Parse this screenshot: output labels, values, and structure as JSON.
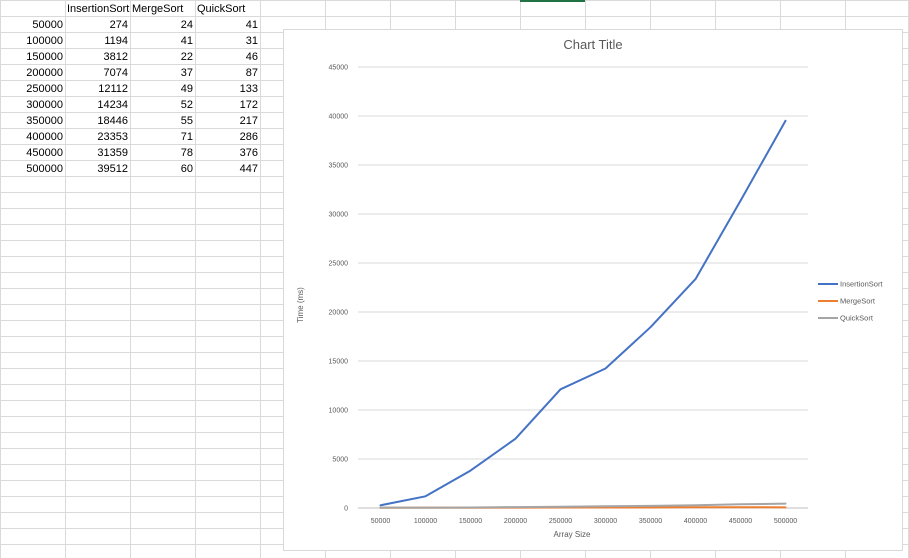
{
  "sheet": {
    "headers": [
      "",
      "InsertionSort",
      "MergeSort",
      "QuickSort"
    ],
    "rows": [
      [
        "50000",
        "274",
        "24",
        "41"
      ],
      [
        "100000",
        "1194",
        "41",
        "31"
      ],
      [
        "150000",
        "3812",
        "22",
        "46"
      ],
      [
        "200000",
        "7074",
        "37",
        "87"
      ],
      [
        "250000",
        "12112",
        "49",
        "133"
      ],
      [
        "300000",
        "14234",
        "52",
        "172"
      ],
      [
        "350000",
        "18446",
        "55",
        "217"
      ],
      [
        "400000",
        "23353",
        "71",
        "286"
      ],
      [
        "450000",
        "31359",
        "78",
        "376"
      ],
      [
        "500000",
        "39512",
        "60",
        "447"
      ]
    ]
  },
  "chart_data": {
    "type": "line",
    "title": "Chart Title",
    "xlabel": "Array Size",
    "ylabel": "Time (ms)",
    "categories": [
      "50000",
      "100000",
      "150000",
      "200000",
      "250000",
      "300000",
      "350000",
      "400000",
      "450000",
      "500000"
    ],
    "y_ticks": [
      "0",
      "5000",
      "10000",
      "15000",
      "20000",
      "25000",
      "30000",
      "35000",
      "40000",
      "45000"
    ],
    "ylim": [
      0,
      45000
    ],
    "grid": true,
    "legend_position": "right",
    "series": [
      {
        "name": "InsertionSort",
        "color": "#4472c4",
        "values": [
          274,
          1194,
          3812,
          7074,
          12112,
          14234,
          18446,
          23353,
          31359,
          39512
        ]
      },
      {
        "name": "MergeSort",
        "color": "#ed7d31",
        "values": [
          24,
          41,
          22,
          37,
          49,
          52,
          55,
          71,
          78,
          60
        ]
      },
      {
        "name": "QuickSort",
        "color": "#a5a5a5",
        "values": [
          41,
          31,
          46,
          87,
          133,
          172,
          217,
          286,
          376,
          447
        ]
      }
    ]
  }
}
